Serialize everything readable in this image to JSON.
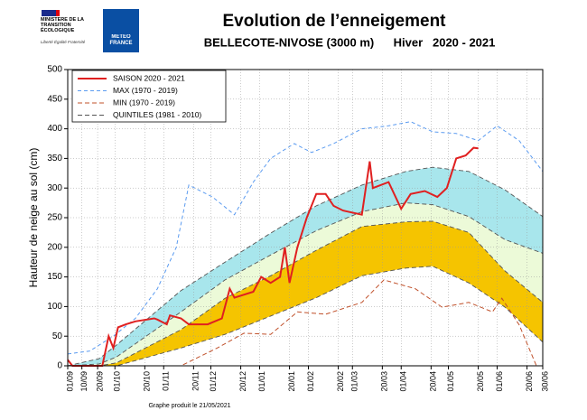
{
  "header": {
    "ministry": "MINISTÈRE DE LA TRANSITION ÉCOLOGIQUE",
    "motto": "Liberté Égalité Fraternité",
    "agency": "METEO FRANCE"
  },
  "chart_data": {
    "type": "line",
    "title": "Evolution de l’enneigement",
    "subtitle": "BELLECOTE-NIVOSE (3000 m)",
    "season": "Hiver   2020 - 2021",
    "ylabel": "Hauteur de neige au sol (cm)",
    "footer": "Graphe produit le 21/05/2021",
    "xlim": [
      0,
      302
    ],
    "ylim": [
      0,
      500
    ],
    "yticks": [
      0,
      50,
      100,
      150,
      200,
      250,
      300,
      350,
      400,
      450,
      500
    ],
    "xticks": [
      {
        "value": 0,
        "label": "01/09"
      },
      {
        "value": 9,
        "label": "10/09"
      },
      {
        "value": 19,
        "label": "20/09"
      },
      {
        "value": 30,
        "label": "01/10"
      },
      {
        "value": 49,
        "label": "20/10"
      },
      {
        "value": 61,
        "label": "01/11"
      },
      {
        "value": 80,
        "label": "20/11"
      },
      {
        "value": 91,
        "label": "01/12"
      },
      {
        "value": 110,
        "label": "20/12"
      },
      {
        "value": 122,
        "label": "01/01"
      },
      {
        "value": 141,
        "label": "20/01"
      },
      {
        "value": 153,
        "label": "01/02"
      },
      {
        "value": 172,
        "label": "20/02"
      },
      {
        "value": 181,
        "label": "01/03"
      },
      {
        "value": 200,
        "label": "20/03"
      },
      {
        "value": 212,
        "label": "01/04"
      },
      {
        "value": 231,
        "label": "20/04"
      },
      {
        "value": 242,
        "label": "01/05"
      },
      {
        "value": 261,
        "label": "20/05"
      },
      {
        "value": 273,
        "label": "01/06"
      },
      {
        "value": 292,
        "label": "20/06"
      },
      {
        "value": 302,
        "label": "30/06"
      }
    ],
    "grid": true,
    "legend": "upper left",
    "quintiles": {
      "name": "QUINTILES (1981 - 2010)",
      "color": "#555555",
      "fills": [
        "#fde6a0",
        "#f5c400",
        "#ecfad8",
        "#a8e6ec"
      ],
      "x": [
        0,
        20,
        31,
        72,
        100,
        129,
        158,
        187,
        215,
        232,
        255,
        278,
        302
      ],
      "lines": [
        [
          0,
          0,
          0,
          30,
          53,
          84,
          115,
          152,
          165,
          168,
          140,
          99,
          40
        ],
        [
          0,
          0,
          5,
          61,
          114,
          152,
          195,
          235,
          243,
          244,
          225,
          160,
          107
        ],
        [
          0,
          3,
          15,
          91,
          145,
          187,
          228,
          260,
          275,
          272,
          252,
          213,
          190
        ],
        [
          0,
          12,
          35,
          127,
          175,
          224,
          270,
          305,
          328,
          335,
          328,
          297,
          252
        ]
      ]
    },
    "series": [
      {
        "name": "SAISON 2020 - 2021",
        "color": "#e02020",
        "dash": "none",
        "width": 2,
        "x": [
          0,
          3,
          22,
          26,
          29,
          32,
          37,
          43,
          55,
          57,
          63,
          65,
          72,
          77,
          89,
          98,
          103,
          106,
          118,
          123,
          129,
          135,
          138,
          141,
          146,
          152,
          158,
          164,
          169,
          175,
          187,
          192,
          194,
          204,
          212,
          218,
          227,
          235,
          241,
          247,
          253,
          258,
          261
        ],
        "values": [
          10,
          0,
          0,
          50,
          30,
          65,
          70,
          75,
          80,
          78,
          70,
          85,
          80,
          70,
          70,
          80,
          130,
          115,
          125,
          150,
          140,
          150,
          200,
          140,
          200,
          250,
          290,
          290,
          270,
          262,
          255,
          345,
          300,
          310,
          265,
          290,
          295,
          285,
          300,
          350,
          355,
          368,
          367
        ]
      },
      {
        "name": "MAX (1970 - 2019)",
        "color": "#5b9bf0",
        "dash": "4 3",
        "width": 1,
        "x": [
          0,
          14,
          29,
          43,
          57,
          69,
          77,
          92,
          106,
          118,
          129,
          144,
          155,
          169,
          187,
          204,
          218,
          232,
          247,
          261,
          273,
          287,
          302
        ],
        "values": [
          20,
          25,
          50,
          80,
          130,
          200,
          305,
          285,
          255,
          310,
          350,
          375,
          360,
          375,
          400,
          405,
          412,
          395,
          392,
          380,
          405,
          380,
          328
        ]
      },
      {
        "name": "MIN (1970 - 2019)",
        "color": "#c0502a",
        "dash": "5 3",
        "width": 1,
        "x": [
          0,
          72,
          95,
          112,
          129,
          146,
          164,
          187,
          201,
          221,
          238,
          255,
          270,
          276,
          287,
          298
        ],
        "values": [
          0,
          0,
          30,
          55,
          53,
          91,
          87,
          107,
          145,
          130,
          99,
          107,
          91,
          114,
          69,
          0
        ]
      }
    ]
  }
}
